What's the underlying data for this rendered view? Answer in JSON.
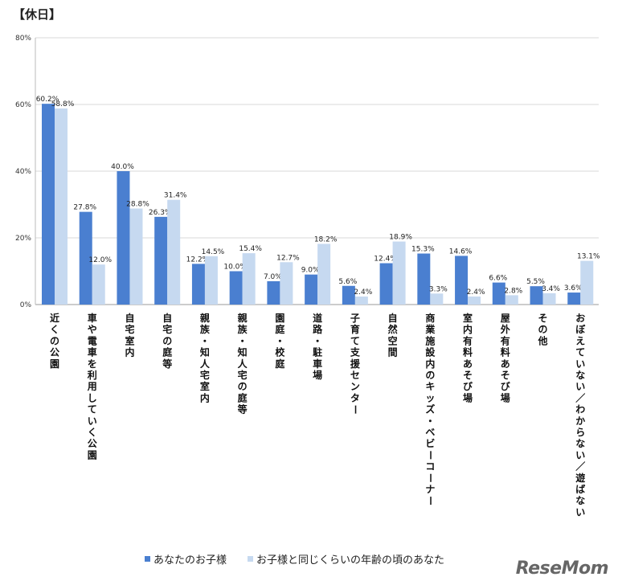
{
  "title": "【休日】",
  "legend": [
    {
      "label": "あなたのお子様",
      "color": "#4a7fd0"
    },
    {
      "label": "お子様と同じくらいの年齢の頃のあなた",
      "color": "#c6d9f0"
    }
  ],
  "logo": "ReseMom",
  "chart_data": {
    "type": "bar",
    "ylim": [
      0,
      80
    ],
    "yticks": [
      "0%",
      "20%",
      "40%",
      "60%",
      "80%"
    ],
    "categories": [
      "近くの公園",
      "車や電車を利用していく公園",
      "自宅室内",
      "自宅の庭等",
      "親族・知人宅室内",
      "親族・知人宅の庭等",
      "園庭・校庭",
      "道路・駐車場",
      "子育て支援センター",
      "自然空間",
      "商業施設内のキッズ・ベビーコーナー",
      "室内有料あそび場",
      "屋外有料あそび場",
      "その他",
      "おぼえていない／わからない／遊ばない"
    ],
    "series": [
      {
        "name": "あなたのお子様",
        "values": [
          60.2,
          27.8,
          40.0,
          26.3,
          12.2,
          10.0,
          7.0,
          9.0,
          5.6,
          12.4,
          15.3,
          14.6,
          6.6,
          5.5,
          3.6
        ],
        "labels": [
          "60.2%",
          "27.8%",
          "40.0%",
          "26.3%",
          "12.2%",
          "10.0%",
          "7.0%",
          "9.0%",
          "5.6%",
          "12.4%",
          "15.3%",
          "14.6%",
          "6.6%",
          "5.5%",
          "3.6%"
        ]
      },
      {
        "name": "お子様と同じくらいの年齢の頃のあなた",
        "values": [
          58.8,
          12.0,
          28.8,
          31.4,
          14.5,
          15.4,
          12.7,
          18.2,
          2.4,
          18.9,
          3.3,
          2.4,
          2.8,
          3.4,
          13.1
        ],
        "labels": [
          "58.8%",
          "12.0%",
          "28.8%",
          "31.4%",
          "14.5%",
          "15.4%",
          "12.7%",
          "18.2%",
          "2.4%",
          "18.9%",
          "3.3%",
          "2.4%",
          "2.8%",
          "3.4%",
          "13.1%"
        ]
      }
    ]
  }
}
